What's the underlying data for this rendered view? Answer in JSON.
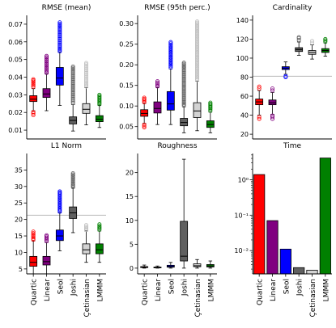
{
  "figure": {
    "layout": "2x3 grid of subplots",
    "categories": [
      "Quartic",
      "Linear",
      "Seol",
      "Joshi",
      "Çetinasian",
      "LMMM"
    ],
    "colors": [
      "#ff0000",
      "#800080",
      "#0000ff",
      "#606060",
      "#d3d3d3",
      "#008000"
    ]
  },
  "chart_data": [
    {
      "id": "rmse_mean",
      "type": "box",
      "title": "RMSE (mean)",
      "ylim": [
        0.005,
        0.075
      ],
      "yticks": [
        0.01,
        0.02,
        0.03,
        0.04,
        0.05,
        0.06,
        0.07
      ],
      "ytick_labels": [
        "0.01",
        "0.02",
        "0.03",
        "0.04",
        "0.05",
        "0.06",
        "0.07"
      ],
      "series": [
        {
          "min": 0.021,
          "q1": 0.0262,
          "median": 0.0275,
          "q3": 0.0295,
          "max": 0.0335,
          "fliers": [
            0.0185,
            0.0195,
            0.0202,
            0.0345,
            0.036,
            0.0375,
            0.0388
          ]
        },
        {
          "min": 0.021,
          "q1": 0.0285,
          "median": 0.0305,
          "q3": 0.0335,
          "max": 0.0418,
          "fliers": [
            0.043,
            0.046,
            0.049,
            0.052
          ]
        },
        {
          "min": 0.024,
          "q1": 0.0355,
          "median": 0.0395,
          "q3": 0.0455,
          "max": 0.054,
          "fliers": [
            0.056,
            0.06,
            0.064,
            0.068,
            0.071
          ]
        },
        {
          "min": 0.0095,
          "q1": 0.0135,
          "median": 0.0155,
          "q3": 0.0175,
          "max": 0.0245,
          "fliers": [
            0.027,
            0.031,
            0.035,
            0.039,
            0.043,
            0.046
          ]
        },
        {
          "min": 0.013,
          "q1": 0.0195,
          "median": 0.0218,
          "q3": 0.025,
          "max": 0.034,
          "fliers": [
            0.036,
            0.04,
            0.044,
            0.048
          ]
        },
        {
          "min": 0.0115,
          "q1": 0.0148,
          "median": 0.0162,
          "q3": 0.0182,
          "max": 0.024,
          "fliers": [
            0.026,
            0.028,
            0.03
          ]
        }
      ]
    },
    {
      "id": "rmse_95",
      "type": "box",
      "title": "RMSE (95th perc.)",
      "ylim": [
        0.02,
        0.32
      ],
      "yticks": [
        0.05,
        0.1,
        0.15,
        0.2,
        0.25,
        0.3
      ],
      "ytick_labels": [
        "0.05",
        "0.10",
        "0.15",
        "0.20",
        "0.25",
        "0.30"
      ],
      "series": [
        {
          "min": 0.058,
          "q1": 0.075,
          "median": 0.082,
          "q3": 0.091,
          "max": 0.106,
          "fliers": [
            0.048,
            0.112,
            0.12
          ]
        },
        {
          "min": 0.055,
          "q1": 0.083,
          "median": 0.094,
          "q3": 0.11,
          "max": 0.145,
          "fliers": [
            0.15,
            0.16
          ]
        },
        {
          "min": 0.055,
          "q1": 0.09,
          "median": 0.105,
          "q3": 0.135,
          "max": 0.19,
          "fliers": [
            0.2,
            0.215,
            0.23,
            0.245,
            0.255
          ]
        },
        {
          "min": 0.035,
          "q1": 0.052,
          "median": 0.06,
          "q3": 0.07,
          "max": 0.098,
          "fliers": [
            0.11,
            0.13,
            0.15,
            0.17,
            0.19,
            0.205
          ]
        },
        {
          "min": 0.04,
          "q1": 0.072,
          "median": 0.088,
          "q3": 0.108,
          "max": 0.16,
          "fliers": [
            0.175,
            0.2,
            0.23,
            0.26,
            0.29,
            0.305
          ]
        },
        {
          "min": 0.035,
          "q1": 0.048,
          "median": 0.055,
          "q3": 0.064,
          "max": 0.085,
          "fliers": [
            0.092,
            0.1,
            0.108
          ]
        }
      ]
    },
    {
      "id": "cardinality",
      "type": "box",
      "title": "Cardinality",
      "ylim": [
        15,
        145
      ],
      "yticks": [
        20,
        40,
        60,
        80,
        100,
        120,
        140
      ],
      "ytick_labels": [
        "20",
        "40",
        "60",
        "80",
        "100",
        "120",
        "140"
      ],
      "hline": 81,
      "series": [
        {
          "min": 40,
          "q1": 51,
          "median": 54,
          "q3": 57,
          "max": 66,
          "fliers": [
            36,
            38,
            68,
            70
          ]
        },
        {
          "min": 41,
          "q1": 51,
          "median": 53,
          "q3": 56,
          "max": 64,
          "fliers": [
            36,
            38,
            66,
            68
          ]
        },
        {
          "min": 83,
          "q1": 88,
          "median": 89.5,
          "q3": 91,
          "max": 96,
          "fliers": [
            80,
            81
          ]
        },
        {
          "min": 103,
          "q1": 107,
          "median": 109,
          "q3": 111,
          "max": 117,
          "fliers": [
            119,
            121,
            122
          ]
        },
        {
          "min": 99,
          "q1": 104,
          "median": 106,
          "q3": 108,
          "max": 114,
          "fliers": [
            116,
            118
          ]
        },
        {
          "min": 102,
          "q1": 106,
          "median": 108,
          "q3": 110,
          "max": 116,
          "fliers": [
            120
          ]
        }
      ]
    },
    {
      "id": "l1_norm",
      "type": "box",
      "title": "L1 Norm",
      "ylim": [
        3.5,
        40
      ],
      "yticks": [
        5,
        10,
        15,
        20,
        25,
        30,
        35
      ],
      "ytick_labels": [
        "5",
        "10",
        "15",
        "20",
        "25",
        "30",
        "35"
      ],
      "hline": 21.3,
      "series": [
        {
          "min": 3.5,
          "q1": 5.8,
          "median": 7.0,
          "q3": 8.8,
          "max": 13.5,
          "fliers": [
            14.2,
            15.0,
            15.8,
            16.3
          ]
        },
        {
          "min": 3.5,
          "q1": 6.2,
          "median": 7.2,
          "q3": 8.8,
          "max": 13.0,
          "fliers": [
            13.8,
            14.5,
            15.2
          ]
        },
        {
          "min": 10.5,
          "q1": 13.6,
          "median": 15.0,
          "q3": 16.8,
          "max": 22.0,
          "fliers": [
            23.0,
            24.5,
            26.0,
            27.5,
            28.5
          ]
        },
        {
          "min": 16.0,
          "q1": 20.3,
          "median": 22.0,
          "q3": 23.8,
          "max": 29.5,
          "fliers": [
            30.5,
            32.5,
            34.0
          ]
        },
        {
          "min": 7.0,
          "q1": 9.6,
          "median": 10.8,
          "q3": 12.6,
          "max": 16.5,
          "fliers": [
            17.5,
            18.3
          ]
        },
        {
          "min": 7.0,
          "q1": 9.6,
          "median": 10.8,
          "q3": 12.6,
          "max": 16.5,
          "fliers": [
            17.3,
            18.0,
            18.5
          ]
        }
      ]
    },
    {
      "id": "roughness",
      "type": "box",
      "title": "Roughness",
      "ylim": [
        -1.2,
        24
      ],
      "yticks": [
        0,
        5,
        10,
        15,
        20
      ],
      "ytick_labels": [
        "0",
        "5",
        "10",
        "15",
        "20"
      ],
      "series": [
        {
          "min": 0.0,
          "q1": 0.12,
          "median": 0.2,
          "q3": 0.32,
          "max": 0.65,
          "fliers": []
        },
        {
          "min": 0.0,
          "q1": 0.08,
          "median": 0.14,
          "q3": 0.22,
          "max": 0.45,
          "fliers": []
        },
        {
          "min": 0.0,
          "q1": 0.2,
          "median": 0.35,
          "q3": 0.6,
          "max": 1.2,
          "fliers": []
        },
        {
          "min": 0.0,
          "q1": 1.5,
          "median": 2.5,
          "q3": 9.8,
          "max": 22.8,
          "fliers": []
        },
        {
          "min": 0.0,
          "q1": 0.3,
          "median": 0.5,
          "q3": 0.9,
          "max": 1.8,
          "fliers": []
        },
        {
          "min": 0.0,
          "q1": 0.25,
          "median": 0.45,
          "q3": 0.75,
          "max": 1.5,
          "fliers": []
        }
      ]
    },
    {
      "id": "time",
      "type": "bar",
      "title": "Time",
      "yscale": "log",
      "ylim": [
        0.0022,
        5.5
      ],
      "yticks": [
        0.01,
        0.1,
        1
      ],
      "ytick_labels": [
        "10⁻²",
        "10⁻¹",
        "10⁰"
      ],
      "values": [
        1.4,
        0.07,
        0.011,
        0.0033,
        0.0028,
        4.1
      ]
    }
  ]
}
